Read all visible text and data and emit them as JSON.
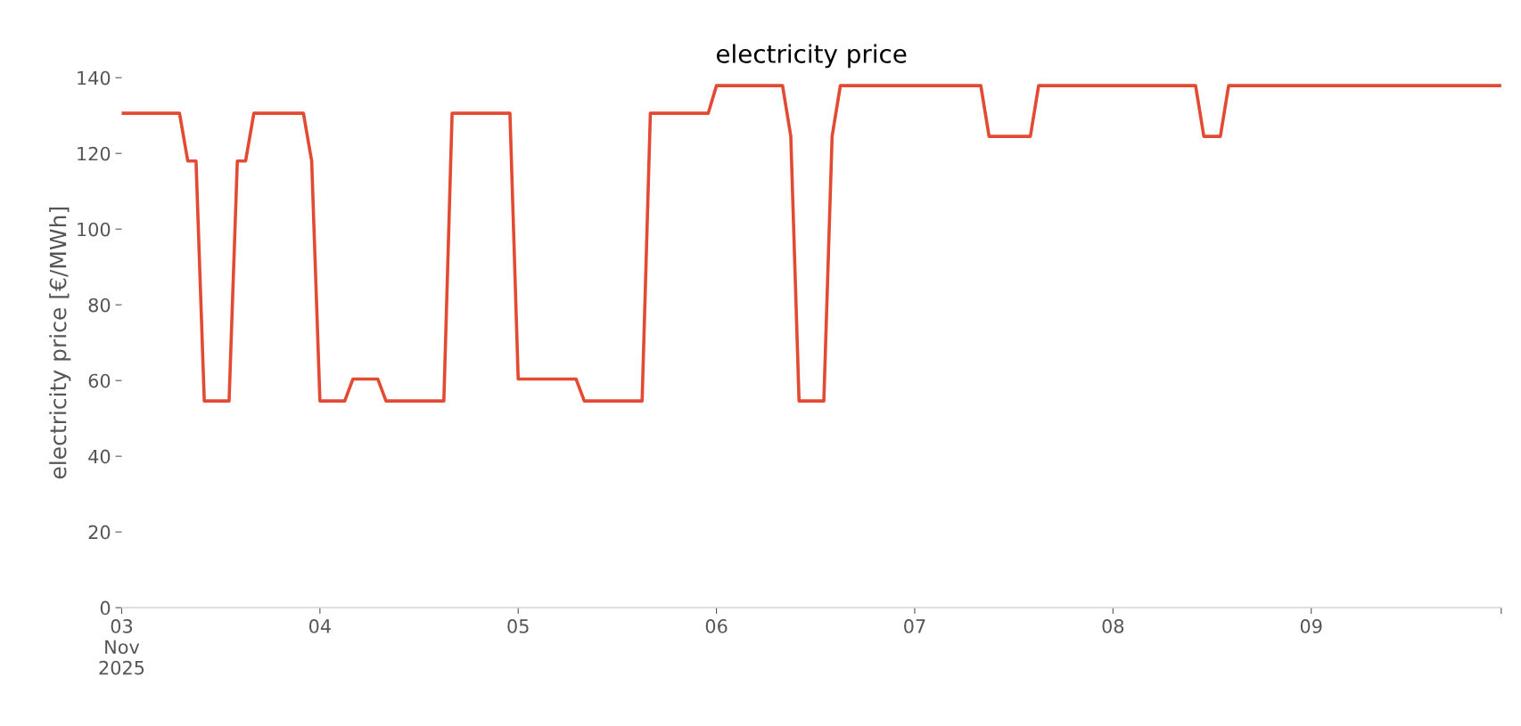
{
  "chart_data": {
    "type": "line",
    "title": "electricity price",
    "ylabel": "electricity price [€/MWh]",
    "x": [
      "2025-11-03T00:00",
      "2025-11-03T07:00",
      "2025-11-03T08:00",
      "2025-11-03T09:00",
      "2025-11-03T10:00",
      "2025-11-03T13:00",
      "2025-11-03T14:00",
      "2025-11-03T15:00",
      "2025-11-03T16:00",
      "2025-11-03T22:00",
      "2025-11-03T23:00",
      "2025-11-04T00:00",
      "2025-11-04T03:00",
      "2025-11-04T04:00",
      "2025-11-04T07:00",
      "2025-11-04T08:00",
      "2025-11-04T15:00",
      "2025-11-04T16:00",
      "2025-11-04T23:00",
      "2025-11-05T00:00",
      "2025-11-05T07:00",
      "2025-11-05T08:00",
      "2025-11-05T15:00",
      "2025-11-05T16:00",
      "2025-11-05T23:00",
      "2025-11-06T00:00",
      "2025-11-06T08:00",
      "2025-11-06T09:00",
      "2025-11-06T10:00",
      "2025-11-06T13:00",
      "2025-11-06T14:00",
      "2025-11-06T15:00",
      "2025-11-07T08:00",
      "2025-11-07T09:00",
      "2025-11-07T14:00",
      "2025-11-07T15:00",
      "2025-11-08T10:00",
      "2025-11-08T11:00",
      "2025-11-08T13:00",
      "2025-11-08T14:00",
      "2025-11-09T23:00"
    ],
    "series": [
      {
        "color": "#e24a33",
        "values": [
          130.6,
          130.6,
          118,
          118,
          54.6,
          54.6,
          118,
          118,
          130.6,
          130.6,
          118,
          54.6,
          54.6,
          60.4,
          60.4,
          54.6,
          54.6,
          130.6,
          130.6,
          60.4,
          60.4,
          54.6,
          54.6,
          130.6,
          130.6,
          137.9,
          137.9,
          124.5,
          54.6,
          54.6,
          124.5,
          137.9,
          137.9,
          124.5,
          124.5,
          137.9,
          137.9,
          124.5,
          124.5,
          137.9,
          137.9
        ]
      }
    ],
    "xlim": [
      "2025-11-03T00:00",
      "2025-11-09T23:00"
    ],
    "xticks": [
      {
        "value": "2025-11-03",
        "label": "03\nNov\n2025"
      },
      {
        "value": "2025-11-04",
        "label": "04"
      },
      {
        "value": "2025-11-05",
        "label": "05"
      },
      {
        "value": "2025-11-06",
        "label": "06"
      },
      {
        "value": "2025-11-07",
        "label": "07"
      },
      {
        "value": "2025-11-08",
        "label": "08"
      },
      {
        "value": "2025-11-09",
        "label": "09"
      },
      {
        "value": "2025-11-09T23:00",
        "label": null
      }
    ],
    "ylim": [
      0,
      140
    ],
    "yticks": [
      0,
      20,
      40,
      60,
      80,
      100,
      120,
      140
    ],
    "grid": false,
    "legend": false,
    "marker": "none",
    "line_style": "solid"
  }
}
